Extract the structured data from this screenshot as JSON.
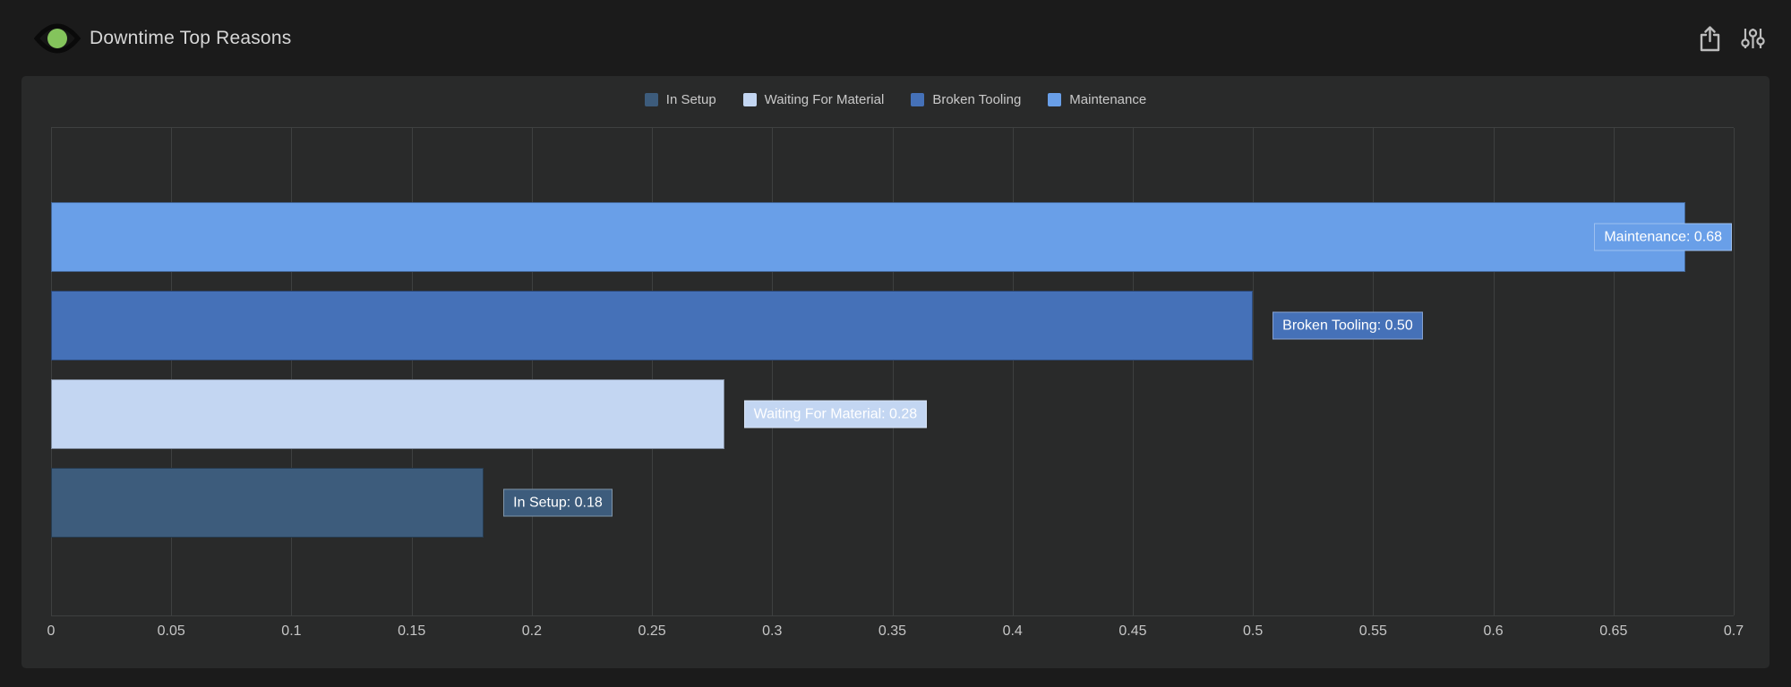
{
  "header": {
    "title": "Downtime Top Reasons",
    "logo_icon": "eye-logo",
    "share_icon": "share-export",
    "filter_icon": "sliders"
  },
  "colors": {
    "page_bg": "#1b1b1b",
    "panel_bg": "#292a2a",
    "gridline": "#3e4040",
    "axis_text": "#c6c6c6",
    "title_text": "#d6d6d6",
    "bar_label_text": "#ffffff",
    "logo_green": "#84c45c",
    "icon_gray": "#bdbdbd"
  },
  "chart_data": {
    "type": "bar",
    "orientation": "horizontal",
    "title": "Downtime Top Reasons",
    "categories": [
      "In Setup",
      "Waiting For Material",
      "Broken Tooling",
      "Maintenance"
    ],
    "values": [
      0.18,
      0.28,
      0.5,
      0.68
    ],
    "xlabel": "",
    "ylabel": "",
    "xlim": [
      0,
      0.7
    ],
    "x_ticks": [
      "0",
      "0.05",
      "0.1",
      "0.15",
      "0.2",
      "0.25",
      "0.3",
      "0.35",
      "0.4",
      "0.45",
      "0.5",
      "0.55",
      "0.6",
      "0.65",
      "0.7"
    ],
    "grid": "vertical-only",
    "legend_position": "top-center",
    "legend": [
      {
        "label": "In Setup",
        "color": "#3d5c7c"
      },
      {
        "label": "Waiting For Material",
        "color": "#c3d6f2"
      },
      {
        "label": "Broken Tooling",
        "color": "#4571b8"
      },
      {
        "label": "Maintenance",
        "color": "#699fe8"
      }
    ],
    "bars": [
      {
        "category": "Maintenance",
        "value": 0.68,
        "data_label": "Maintenance: 0.68",
        "color": "#699fe8"
      },
      {
        "category": "Broken Tooling",
        "value": 0.5,
        "data_label": "Broken Tooling: 0.50",
        "color": "#4571b8"
      },
      {
        "category": "Waiting For Material",
        "value": 0.28,
        "data_label": "Waiting For Material: 0.28",
        "color": "#c3d6f2"
      },
      {
        "category": "In Setup",
        "value": 0.18,
        "data_label": "In Setup: 0.18",
        "color": "#3d5c7c"
      }
    ]
  }
}
